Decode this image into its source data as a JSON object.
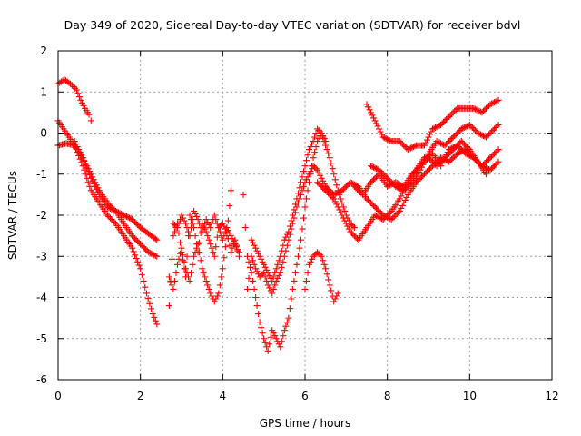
{
  "chart_data": {
    "type": "scatter",
    "title": "Day 349 of 2020, Sidereal Day-to-day VTEC variation (SDTVAR) for receiver bdvl",
    "xlabel": "GPS time / hours",
    "ylabel": "SDTVAR / TECUs",
    "xlim": [
      0,
      12
    ],
    "ylim": [
      -6,
      2
    ],
    "xticks": [
      0,
      2,
      4,
      6,
      8,
      10,
      12
    ],
    "yticks": [
      -6,
      -5,
      -4,
      -3,
      -2,
      -1,
      0,
      1,
      2
    ],
    "grid": true,
    "marker": "+",
    "color": "#ff0000",
    "series": [
      {
        "name": "s1",
        "x": [
          0.0,
          0.15,
          0.3,
          0.45,
          0.55,
          0.65,
          0.75,
          0.8
        ],
        "y": [
          1.2,
          1.3,
          1.2,
          1.05,
          0.8,
          0.6,
          0.45,
          0.3
        ]
      },
      {
        "name": "s2",
        "x": [
          0.0,
          0.2,
          0.4,
          0.6,
          0.8,
          1.0,
          1.2,
          1.4,
          1.6,
          1.8,
          2.0,
          2.2,
          2.4
        ],
        "y": [
          0.3,
          0.0,
          -0.3,
          -0.6,
          -1.0,
          -1.4,
          -1.7,
          -1.9,
          -2.0,
          -2.1,
          -2.3,
          -2.45,
          -2.6
        ]
      },
      {
        "name": "s3",
        "x": [
          0.0,
          0.2,
          0.4,
          0.6,
          0.8,
          1.0,
          1.2,
          1.4,
          1.6,
          1.8,
          2.0,
          2.15,
          2.3,
          2.4
        ],
        "y": [
          -0.3,
          -0.25,
          -0.3,
          -0.8,
          -1.4,
          -1.7,
          -2.0,
          -2.2,
          -2.5,
          -2.8,
          -3.3,
          -3.9,
          -4.4,
          -4.65
        ]
      },
      {
        "name": "s4",
        "x": [
          0.4,
          0.6,
          0.8,
          1.0,
          1.2,
          1.4,
          1.6,
          1.8,
          2.0,
          2.2,
          2.4
        ],
        "y": [
          -0.2,
          -0.6,
          -1.1,
          -1.5,
          -1.8,
          -1.9,
          -2.2,
          -2.5,
          -2.7,
          -2.9,
          -3.0
        ]
      },
      {
        "name": "s5",
        "x": [
          2.7,
          2.8,
          2.9,
          3.0,
          3.1,
          3.2,
          3.3,
          3.4,
          3.5,
          3.6,
          3.7,
          3.8,
          3.9,
          4.0,
          4.1,
          4.2
        ],
        "y": [
          -3.5,
          -3.8,
          -3.2,
          -2.8,
          -3.3,
          -3.6,
          -3.0,
          -2.7,
          -3.3,
          -3.6,
          -3.9,
          -4.1,
          -3.9,
          -3.3,
          -2.5,
          -1.4
        ]
      },
      {
        "name": "s6",
        "x": [
          2.7,
          2.8,
          2.9,
          3.0,
          3.1,
          3.2,
          3.3,
          3.4,
          3.5,
          3.6,
          3.7,
          3.8,
          3.9,
          4.0,
          4.1,
          4.2,
          4.3,
          4.4
        ],
        "y": [
          -4.2,
          -2.5,
          -2.2,
          -2.9,
          -3.5,
          -2.0,
          -2.3,
          -2.9,
          -2.2,
          -2.4,
          -2.7,
          -3.0,
          -2.3,
          -2.2,
          -2.4,
          -2.9,
          -2.6,
          -3.0
        ]
      },
      {
        "name": "s7",
        "x": [
          2.8,
          2.9,
          3.0,
          3.1,
          3.2,
          3.3,
          3.4,
          3.5,
          3.6,
          3.7,
          3.8,
          3.9,
          4.0,
          4.1,
          4.2,
          4.3,
          4.4
        ],
        "y": [
          -2.2,
          -2.3,
          -2.0,
          -2.2,
          -2.5,
          -1.9,
          -2.1,
          -2.4,
          -2.1,
          -2.3,
          -2.0,
          -2.3,
          -2.6,
          -2.3,
          -2.5,
          -2.7,
          -2.9
        ]
      },
      {
        "name": "s8",
        "x": [
          4.5,
          4.55,
          4.6,
          4.7,
          4.8,
          4.9,
          5.0,
          5.1,
          5.2,
          5.3,
          5.4,
          5.5,
          5.6,
          5.7,
          5.8,
          5.9,
          6.0,
          6.1,
          6.2,
          6.3,
          6.4,
          6.5,
          6.6
        ],
        "y": [
          -1.5,
          -2.3,
          -3.8,
          -3.0,
          -3.3,
          -3.5,
          -3.4,
          -3.7,
          -3.9,
          -3.6,
          -3.4,
          -3.0,
          -2.6,
          -2.2,
          -1.8,
          -1.5,
          -1.2,
          -1.0,
          -0.8,
          -0.9,
          -1.1,
          -1.3,
          -1.5
        ]
      },
      {
        "name": "s9",
        "x": [
          4.6,
          4.7,
          4.8,
          4.9,
          5.0,
          5.1,
          5.2,
          5.3,
          5.4,
          5.5,
          5.6,
          5.7,
          5.8,
          5.9,
          6.0,
          6.1,
          6.2,
          6.3,
          6.4,
          6.5
        ],
        "y": [
          -3.0,
          -3.4,
          -4.0,
          -4.6,
          -5.0,
          -5.3,
          -4.8,
          -5.0,
          -5.2,
          -4.8,
          -4.5,
          -3.8,
          -3.2,
          -2.6,
          -1.8,
          -1.2,
          -0.6,
          -0.2,
          0.0,
          -0.2
        ]
      },
      {
        "name": "s10",
        "x": [
          4.7,
          4.8,
          4.9,
          5.0,
          5.1,
          5.2,
          5.3,
          5.4,
          5.5,
          5.6,
          5.7,
          5.8,
          5.9,
          6.0,
          6.1,
          6.2,
          6.3,
          6.4,
          6.5,
          6.6,
          6.7,
          6.8,
          6.9,
          7.0,
          7.1,
          7.2
        ],
        "y": [
          -2.6,
          -2.8,
          -3.0,
          -3.2,
          -3.4,
          -3.6,
          -3.3,
          -3.0,
          -2.6,
          -2.4,
          -2.0,
          -1.6,
          -1.2,
          -0.8,
          -0.4,
          -0.2,
          0.1,
          0.0,
          -0.3,
          -0.6,
          -1.0,
          -1.4,
          -1.7,
          -2.0,
          -2.2,
          -2.3
        ]
      },
      {
        "name": "s11",
        "x": [
          6.0,
          6.1,
          6.2,
          6.3,
          6.4,
          6.5,
          6.6,
          6.7,
          6.8
        ],
        "y": [
          -3.8,
          -3.2,
          -3.0,
          -2.9,
          -3.0,
          -3.3,
          -3.7,
          -4.1,
          -3.9
        ]
      },
      {
        "name": "s12",
        "x": [
          6.3,
          6.5,
          6.7,
          6.9,
          7.1,
          7.3,
          7.5,
          7.7,
          7.9,
          8.1,
          8.3,
          8.5,
          8.7,
          8.9,
          9.1,
          9.3,
          9.5,
          9.7,
          9.9,
          10.1,
          10.3,
          10.5,
          10.7
        ],
        "y": [
          -1.2,
          -1.4,
          -1.6,
          -2.0,
          -2.4,
          -2.6,
          -2.3,
          -2.0,
          -2.1,
          -1.9,
          -1.6,
          -1.2,
          -0.9,
          -0.6,
          -0.5,
          -0.8,
          -0.4,
          -0.3,
          -0.5,
          -0.6,
          -0.8,
          -0.6,
          -0.4
        ]
      },
      {
        "name": "s13",
        "x": [
          6.5,
          6.7,
          6.9,
          7.1,
          7.3,
          7.5,
          7.7,
          7.9,
          8.1,
          8.3,
          8.5,
          8.7,
          8.9,
          9.1,
          9.3,
          9.5,
          9.7,
          9.9,
          10.1,
          10.3,
          10.5,
          10.7
        ],
        "y": [
          -1.3,
          -1.5,
          -1.4,
          -1.2,
          -1.3,
          -1.6,
          -1.8,
          -2.0,
          -2.1,
          -1.9,
          -1.5,
          -1.2,
          -1.0,
          -0.8,
          -0.6,
          -0.7,
          -0.5,
          -0.4,
          -0.6,
          -0.8,
          -0.9,
          -0.7
        ]
      },
      {
        "name": "s14",
        "x": [
          7.5,
          7.7,
          7.9,
          8.1,
          8.3,
          8.5,
          8.7,
          8.9,
          9.1,
          9.3,
          9.5,
          9.7,
          9.9,
          10.1,
          10.3,
          10.5,
          10.7
        ],
        "y": [
          0.7,
          0.3,
          -0.1,
          -0.2,
          -0.2,
          -0.4,
          -0.3,
          -0.3,
          0.1,
          0.2,
          0.4,
          0.6,
          0.6,
          0.6,
          0.5,
          0.7,
          0.8
        ]
      },
      {
        "name": "s15",
        "x": [
          7.6,
          7.8,
          8.0,
          8.2,
          8.4,
          8.6,
          8.8,
          9.0,
          9.2,
          9.4,
          9.6,
          9.8,
          10.0,
          10.2,
          10.4,
          10.6,
          10.7
        ],
        "y": [
          -0.8,
          -0.9,
          -1.1,
          -1.3,
          -1.4,
          -1.2,
          -0.9,
          -0.5,
          -0.2,
          -0.3,
          -0.1,
          0.1,
          0.2,
          0.0,
          -0.1,
          0.1,
          0.2
        ]
      },
      {
        "name": "s16",
        "x": [
          7.2,
          7.4,
          7.6,
          7.8,
          8.0,
          8.2,
          8.4,
          8.6,
          8.8,
          9.0,
          9.2,
          9.4,
          9.6,
          9.8,
          10.0,
          10.2,
          10.4
        ],
        "y": [
          -1.3,
          -1.5,
          -1.2,
          -1.0,
          -1.3,
          -1.2,
          -1.3,
          -1.0,
          -0.8,
          -0.6,
          -0.8,
          -0.6,
          -0.4,
          -0.2,
          -0.4,
          -0.7,
          -1.0
        ]
      }
    ]
  }
}
